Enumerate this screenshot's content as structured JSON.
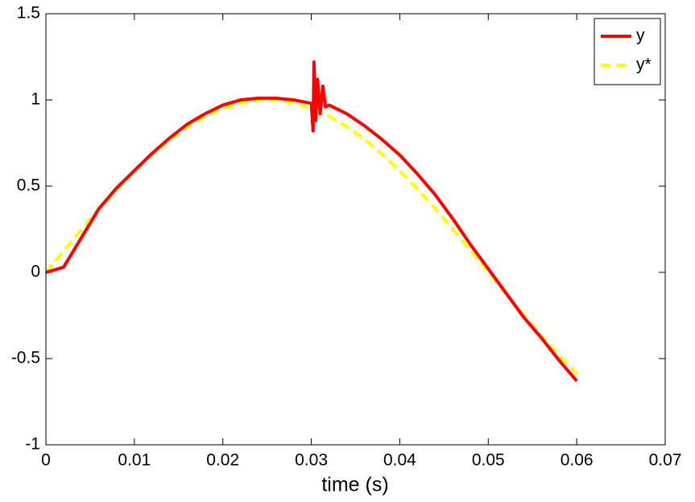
{
  "chart_data": {
    "type": "line",
    "xlabel": "time (s)",
    "xlim": [
      0,
      0.07
    ],
    "xticks": [
      0,
      0.01,
      0.02,
      0.03,
      0.04,
      0.05,
      0.06,
      0.07
    ],
    "ylim": [
      -1,
      1.5
    ],
    "yticks": [
      -1,
      -0.5,
      0,
      0.5,
      1,
      1.5
    ],
    "grid": false,
    "legend": "upper right",
    "series": [
      {
        "name": "y",
        "color": "#ff0000",
        "style": "solid",
        "x": [
          0,
          0.002,
          0.004,
          0.006,
          0.008,
          0.01,
          0.012,
          0.014,
          0.016,
          0.018,
          0.02,
          0.022,
          0.024,
          0.026,
          0.028,
          0.03,
          0.0302,
          0.0303,
          0.0305,
          0.0307,
          0.031,
          0.0313,
          0.0316,
          0.032,
          0.034,
          0.036,
          0.038,
          0.04,
          0.042,
          0.044,
          0.046,
          0.048,
          0.05,
          0.052,
          0.054,
          0.056,
          0.058,
          0.06
        ],
        "values": [
          0,
          0.03,
          0.2,
          0.37,
          0.49,
          0.59,
          0.69,
          0.78,
          0.86,
          0.92,
          0.97,
          1.0,
          1.01,
          1.01,
          1.0,
          0.98,
          0.82,
          1.22,
          0.88,
          1.12,
          0.92,
          1.08,
          0.96,
          0.97,
          0.92,
          0.85,
          0.77,
          0.68,
          0.57,
          0.45,
          0.31,
          0.16,
          0.02,
          -0.12,
          -0.26,
          -0.38,
          -0.51,
          -0.63
        ]
      },
      {
        "name": "y*",
        "color": "#ffff00",
        "style": "dashed",
        "x": [
          0,
          0.002,
          0.004,
          0.006,
          0.008,
          0.01,
          0.012,
          0.014,
          0.016,
          0.018,
          0.02,
          0.022,
          0.024,
          0.026,
          0.028,
          0.03,
          0.032,
          0.034,
          0.036,
          0.038,
          0.04,
          0.042,
          0.044,
          0.046,
          0.048,
          0.05,
          0.052,
          0.054,
          0.056,
          0.058,
          0.06
        ],
        "values": [
          0,
          0.125,
          0.249,
          0.368,
          0.482,
          0.588,
          0.685,
          0.771,
          0.844,
          0.905,
          0.951,
          0.982,
          0.998,
          0.998,
          0.982,
          0.951,
          0.905,
          0.844,
          0.771,
          0.685,
          0.588,
          0.482,
          0.368,
          0.249,
          0.125,
          0,
          -0.125,
          -0.249,
          -0.368,
          -0.482,
          -0.588
        ]
      }
    ]
  }
}
